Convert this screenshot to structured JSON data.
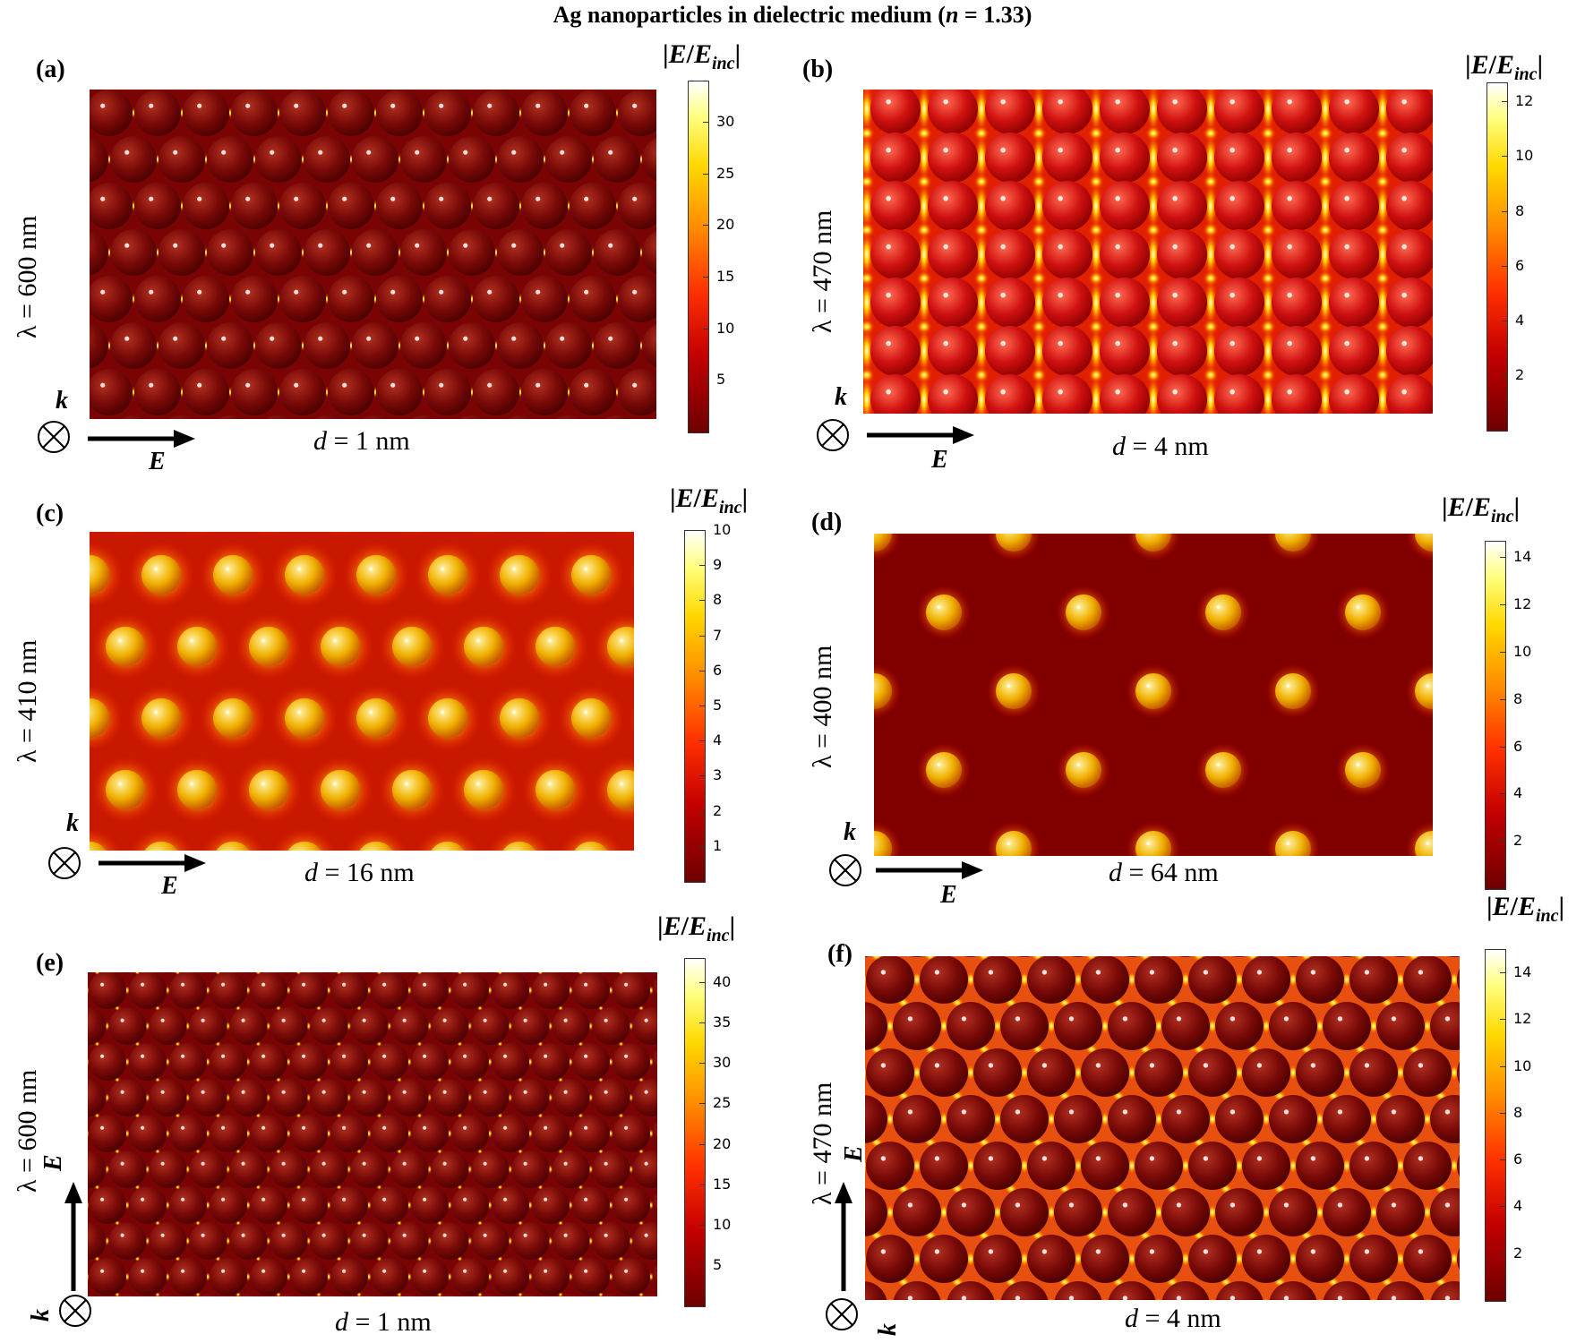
{
  "title": {
    "text": "Ag nanoparticles in dielectric medium (",
    "n_sym": "n",
    "n_val": " = 1.33)"
  },
  "cbar_title": {
    "pre": "|",
    "e1": "E",
    "slash": "/",
    "e2": "E",
    "sub": "inc",
    "post": "|"
  },
  "k_label": "k",
  "e_label": "E",
  "colors": {
    "low": "#6e0000",
    "mid": "#ff3000",
    "high": "#ffff80",
    "max": "#ffffff"
  },
  "panels": [
    {
      "label": "(a)",
      "wavelength": "λ = 600 nm",
      "d_pre": "d",
      "d_post": " = 1 nm",
      "cbar_ticks": [
        "30",
        "25",
        "20",
        "15",
        "10",
        "5"
      ],
      "cbar_max": 34,
      "tick_values": [
        30,
        25,
        20,
        15,
        10,
        5
      ],
      "polarization": "horizontal"
    },
    {
      "label": "(b)",
      "wavelength": "λ = 470 nm",
      "d_pre": "d",
      "d_post": " = 4 nm",
      "cbar_ticks": [
        "12",
        "10",
        "8",
        "6",
        "4",
        "2"
      ],
      "cbar_max": 12.7,
      "tick_values": [
        12,
        10,
        8,
        6,
        4,
        2
      ],
      "polarization": "horizontal"
    },
    {
      "label": "(c)",
      "wavelength": "λ = 410 nm",
      "d_pre": "d",
      "d_post": " = 16 nm",
      "cbar_ticks": [
        "10",
        "9",
        "8",
        "7",
        "6",
        "5",
        "4",
        "3",
        "2",
        "1"
      ],
      "cbar_max": 10,
      "tick_values": [
        10,
        9,
        8,
        7,
        6,
        5,
        4,
        3,
        2,
        1
      ],
      "polarization": "horizontal"
    },
    {
      "label": "(d)",
      "wavelength": "λ = 400 nm",
      "d_pre": "d",
      "d_post": " = 64 nm",
      "cbar_ticks": [
        "14",
        "12",
        "10",
        "8",
        "6",
        "4",
        "2"
      ],
      "cbar_max": 14.7,
      "tick_values": [
        14,
        12,
        10,
        8,
        6,
        4,
        2
      ],
      "polarization": "horizontal"
    },
    {
      "label": "(e)",
      "wavelength": "λ = 600 nm",
      "d_pre": "d",
      "d_post": " = 1 nm",
      "cbar_ticks": [
        "40",
        "35",
        "30",
        "25",
        "20",
        "15",
        "10",
        "5"
      ],
      "cbar_max": 43,
      "tick_values": [
        40,
        35,
        30,
        25,
        20,
        15,
        10,
        5
      ],
      "polarization": "vertical"
    },
    {
      "label": "(f)",
      "wavelength": "λ = 470 nm",
      "d_pre": "d",
      "d_post": " = 4 nm",
      "cbar_ticks": [
        "14",
        "12",
        "10",
        "8",
        "6",
        "4",
        "2"
      ],
      "cbar_max": 15,
      "tick_values": [
        14,
        12,
        10,
        8,
        6,
        4,
        2
      ],
      "polarization": "vertical"
    }
  ]
}
